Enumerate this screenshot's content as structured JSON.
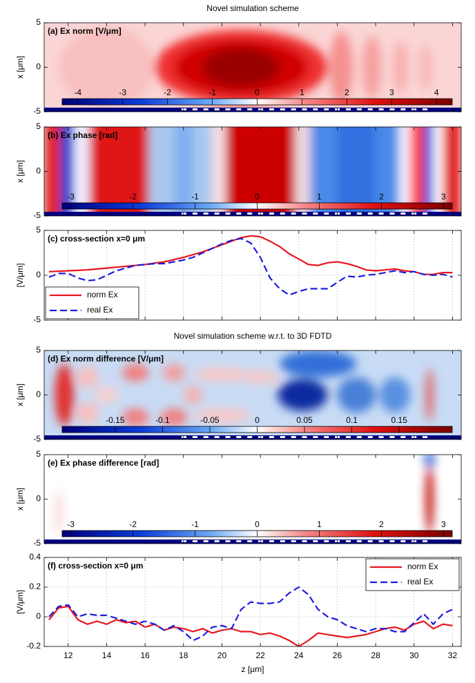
{
  "x_axis": {
    "xlim": [
      10.75,
      32.45
    ],
    "xticks": [
      12,
      14,
      16,
      18,
      20,
      22,
      24,
      26,
      28,
      30,
      32
    ],
    "xlabel": "z [μm]"
  },
  "chart_data": [
    {
      "type": "heatmap",
      "title": "Novel simulation scheme",
      "annotation": "(a) Ex norm [V/μm]",
      "ylabel": "x [μm]",
      "ylim": [
        -5,
        5
      ],
      "yticks": [
        -5,
        0,
        5
      ],
      "colorbar": {
        "lim": [
          -4.35,
          4.35
        ],
        "ticks": [
          -4,
          -3,
          -2,
          -1,
          0,
          1,
          2,
          3,
          4
        ]
      }
    },
    {
      "type": "heatmap",
      "annotation": "(b) Ex phase [rad]",
      "ylabel": "x [μm]",
      "ylim": [
        -5,
        5
      ],
      "yticks": [
        -5,
        0,
        5
      ],
      "colorbar": {
        "lim": [
          -3.14,
          3.14
        ],
        "ticks": [
          -3,
          -2,
          -1,
          0,
          1,
          2,
          3
        ]
      }
    },
    {
      "type": "line",
      "annotation": "(c) cross-section x=0 μm",
      "ylabel": "[V/μm]",
      "ylim": [
        -5,
        5
      ],
      "yticks": [
        -5,
        0,
        5
      ],
      "grid": true,
      "legend": "lower left",
      "x": [
        11,
        11.5,
        12,
        12.5,
        13,
        13.5,
        14,
        14.5,
        15,
        15.5,
        16,
        16.5,
        17,
        17.5,
        18,
        18.5,
        19,
        19.5,
        20,
        20.5,
        21,
        21.5,
        22,
        22.5,
        23,
        23.5,
        24,
        24.5,
        25,
        25.5,
        26,
        26.5,
        27,
        27.5,
        28,
        28.5,
        29,
        29.5,
        30,
        30.5,
        31,
        31.5,
        32
      ],
      "series": [
        {
          "name": "norm Ex",
          "color": "#e8141c",
          "dash": "solid",
          "values": [
            0.4,
            0.45,
            0.5,
            0.55,
            0.6,
            0.7,
            0.8,
            0.9,
            1.0,
            1.1,
            1.2,
            1.35,
            1.5,
            1.75,
            2.0,
            2.3,
            2.6,
            3.0,
            3.4,
            3.8,
            4.2,
            4.4,
            4.3,
            3.8,
            3.2,
            2.4,
            1.8,
            1.2,
            1.1,
            1.4,
            1.5,
            1.3,
            1.0,
            0.6,
            0.5,
            0.6,
            0.7,
            0.5,
            0.4,
            0.1,
            0.1,
            0.3,
            0.3
          ]
        },
        {
          "name": "real Ex",
          "color": "#1a1ae0",
          "dash": "dashed",
          "values": [
            -0.2,
            0.2,
            0.2,
            -0.3,
            -0.6,
            -0.5,
            0,
            0.5,
            0.8,
            1.1,
            1.2,
            1.3,
            1.3,
            1.5,
            1.7,
            2.0,
            2.5,
            3.0,
            3.5,
            3.9,
            4.1,
            3.6,
            2.0,
            -0.3,
            -1.5,
            -2.2,
            -1.8,
            -1.5,
            -1.5,
            -1.5,
            -0.8,
            -0.1,
            -0.2,
            0,
            0.1,
            0.3,
            0.5,
            0.3,
            0.4,
            0.1,
            0,
            0.1,
            -0.2
          ]
        }
      ]
    },
    {
      "type": "heatmap",
      "title": "Novel simulation scheme w.r.t. to 3D FDTD",
      "annotation": "(d) Ex norm difference [V/μm]",
      "ylabel": "x [μm]",
      "ylim": [
        -5,
        5
      ],
      "yticks": [
        -5,
        0,
        5
      ],
      "colorbar": {
        "lim": [
          -0.206,
          0.206
        ],
        "ticks": [
          -0.15,
          -0.1,
          -0.05,
          0,
          0.05,
          0.1,
          0.15
        ]
      }
    },
    {
      "type": "heatmap",
      "annotation": "(e) Ex phase difference [rad]",
      "ylabel": "x [μm]",
      "ylim": [
        -5,
        5
      ],
      "yticks": [
        -5,
        0,
        5
      ],
      "colorbar": {
        "lim": [
          -3.14,
          3.14
        ],
        "ticks": [
          -3,
          -2,
          -1,
          0,
          1,
          2,
          3
        ]
      }
    },
    {
      "type": "line",
      "annotation": "(f) cross-section x=0 μm",
      "ylabel": "[V/μm]",
      "ylim": [
        -0.2,
        0.4
      ],
      "yticks": [
        -0.2,
        0,
        0.2,
        0.4
      ],
      "grid": true,
      "legend": "upper right",
      "x": [
        11,
        11.5,
        12,
        12.5,
        13,
        13.5,
        14,
        14.5,
        15,
        15.5,
        16,
        16.5,
        17,
        17.5,
        18,
        18.5,
        19,
        19.5,
        20,
        20.5,
        21,
        21.5,
        22,
        22.5,
        23,
        23.5,
        24,
        24.5,
        25,
        25.5,
        26,
        26.5,
        27,
        27.5,
        28,
        28.5,
        29,
        29.5,
        30,
        30.5,
        31,
        31.5,
        32
      ],
      "series": [
        {
          "name": "norm Ex",
          "color": "#e8141c",
          "dash": "solid",
          "values": [
            -0.02,
            0.06,
            0.07,
            -0.02,
            -0.05,
            -0.03,
            -0.05,
            -0.02,
            -0.04,
            -0.03,
            -0.07,
            -0.05,
            -0.09,
            -0.07,
            -0.08,
            -0.1,
            -0.08,
            -0.11,
            -0.09,
            -0.08,
            -0.1,
            -0.1,
            -0.12,
            -0.11,
            -0.13,
            -0.16,
            -0.2,
            -0.16,
            -0.11,
            -0.12,
            -0.13,
            -0.14,
            -0.13,
            -0.12,
            -0.1,
            -0.08,
            -0.07,
            -0.09,
            -0.05,
            -0.03,
            -0.08,
            -0.05,
            -0.06
          ]
        },
        {
          "name": "real Ex",
          "color": "#1a1ae0",
          "dash": "dashed",
          "values": [
            0.0,
            0.07,
            0.08,
            0.0,
            0.02,
            0.01,
            0.01,
            -0.01,
            -0.03,
            -0.05,
            -0.03,
            -0.05,
            -0.09,
            -0.06,
            -0.1,
            -0.16,
            -0.13,
            -0.07,
            -0.06,
            -0.08,
            0.05,
            0.1,
            0.09,
            0.09,
            0.1,
            0.16,
            0.2,
            0.15,
            0.05,
            0.0,
            -0.02,
            -0.06,
            -0.08,
            -0.1,
            -0.08,
            -0.08,
            -0.1,
            -0.1,
            -0.04,
            0.02,
            -0.05,
            0.02,
            0.05
          ]
        }
      ]
    }
  ]
}
